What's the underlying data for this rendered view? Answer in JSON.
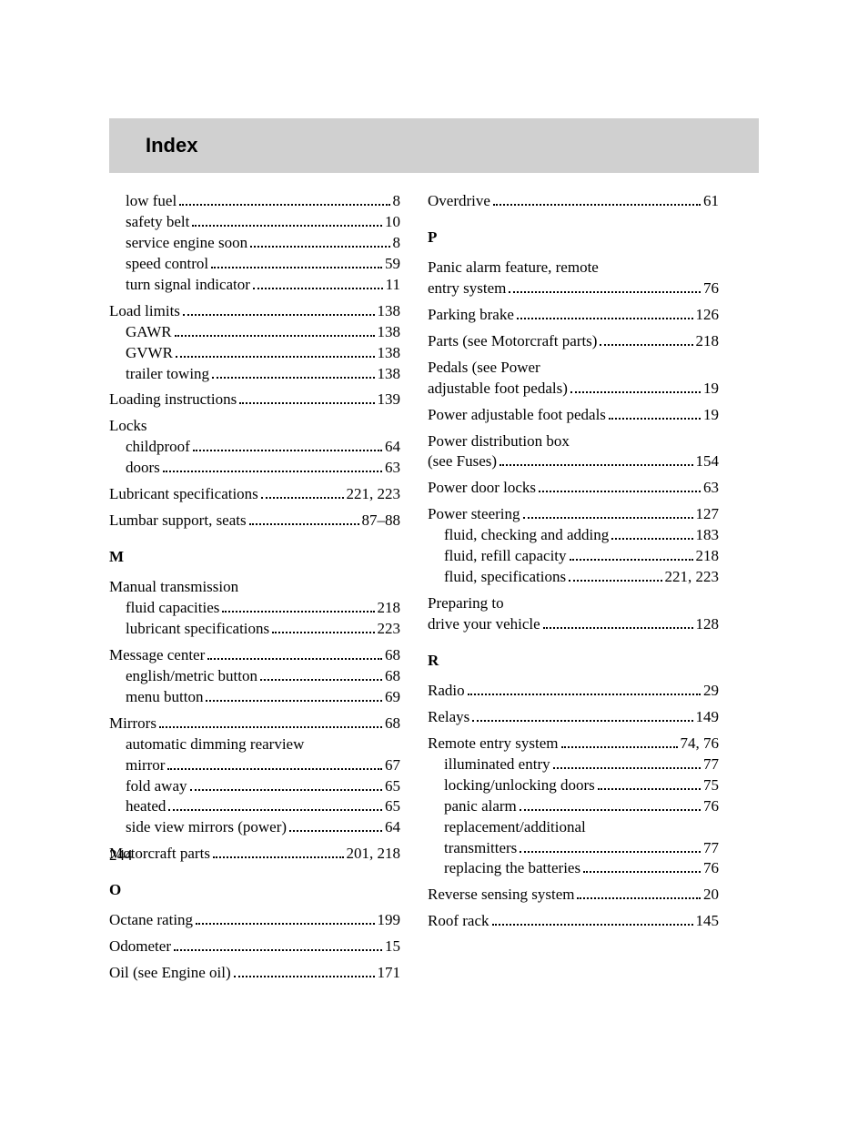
{
  "header": {
    "title": "Index"
  },
  "page_number": "244",
  "left": {
    "continuation": [
      {
        "label": "low fuel",
        "page": "8",
        "indent": 1
      },
      {
        "label": "safety belt",
        "page": "10",
        "indent": 1
      },
      {
        "label": "service engine soon",
        "page": "8",
        "indent": 1
      },
      {
        "label": "speed control",
        "page": "59",
        "indent": 1
      },
      {
        "label": "turn signal indicator",
        "page": "11",
        "indent": 1
      }
    ],
    "load_limits": {
      "label": "Load limits",
      "page": "138"
    },
    "load_limits_sub": [
      {
        "label": "GAWR",
        "page": "138",
        "indent": 1
      },
      {
        "label": "GVWR",
        "page": "138",
        "indent": 1
      },
      {
        "label": "trailer towing",
        "page": "138",
        "indent": 1
      }
    ],
    "loading": {
      "label": "Loading instructions",
      "page": "139"
    },
    "locks_header": "Locks",
    "locks_sub": [
      {
        "label": "childproof",
        "page": "64",
        "indent": 1
      },
      {
        "label": "doors",
        "page": "63",
        "indent": 1
      }
    ],
    "lubricant": {
      "label": "Lubricant specifications",
      "page": "221, 223"
    },
    "lumbar": {
      "label": "Lumbar support, seats",
      "page": "87–88"
    },
    "letter_m": "M",
    "manual_header": "Manual transmission",
    "manual_sub": [
      {
        "label": "fluid capacities",
        "page": "218",
        "indent": 1
      },
      {
        "label": "lubricant specifications",
        "page": "223",
        "indent": 1
      }
    ],
    "message": {
      "label": "Message center",
      "page": "68"
    },
    "message_sub": [
      {
        "label": "english/metric button",
        "page": "68",
        "indent": 1
      },
      {
        "label": "menu button",
        "page": "69",
        "indent": 1
      }
    ],
    "mirrors": {
      "label": "Mirrors",
      "page": "68"
    },
    "mirrors_sub_header": "automatic dimming rearview",
    "mirrors_sub": [
      {
        "label": "mirror",
        "page": "67",
        "indent": 1
      },
      {
        "label": "fold away",
        "page": "65",
        "indent": 1
      },
      {
        "label": "heated",
        "page": "65",
        "indent": 1
      },
      {
        "label": "side view mirrors (power)",
        "page": "64",
        "indent": 1
      }
    ],
    "motorcraft": {
      "label": "Motorcraft parts",
      "page": "201, 218"
    },
    "letter_o": "O",
    "octane": {
      "label": "Octane rating",
      "page": "199"
    },
    "odometer": {
      "label": "Odometer",
      "page": "15"
    },
    "oil": {
      "label": "Oil (see Engine oil)",
      "page": "171"
    }
  },
  "right": {
    "overdrive": {
      "label": "Overdrive",
      "page": "61"
    },
    "letter_p": "P",
    "panic_header": "Panic alarm feature, remote",
    "panic_row": {
      "label": "entry system",
      "page": "76"
    },
    "parking": {
      "label": "Parking brake",
      "page": "126"
    },
    "parts": {
      "label": "Parts (see Motorcraft parts)",
      "page": "218"
    },
    "pedals_header": "Pedals (see Power",
    "pedals_row": {
      "label": "adjustable foot pedals)",
      "page": "19"
    },
    "power_pedals": {
      "label": "Power adjustable foot pedals",
      "page": "19"
    },
    "power_dist_header": "Power distribution box",
    "power_dist_row": {
      "label": "(see Fuses)",
      "page": "154"
    },
    "power_locks": {
      "label": "Power door locks",
      "page": "63"
    },
    "power_steering": {
      "label": "Power steering",
      "page": "127"
    },
    "power_steering_sub": [
      {
        "label": "fluid, checking and adding",
        "page": "183",
        "indent": 1
      },
      {
        "label": "fluid, refill capacity",
        "page": "218",
        "indent": 1
      },
      {
        "label": "fluid, specifications",
        "page": "221, 223",
        "indent": 1
      }
    ],
    "preparing_header": "Preparing to",
    "preparing_row": {
      "label": "drive your vehicle",
      "page": "128"
    },
    "letter_r": "R",
    "radio": {
      "label": "Radio",
      "page": "29"
    },
    "relays": {
      "label": "Relays",
      "page": "149"
    },
    "remote": {
      "label": "Remote entry system",
      "page": "74, 76"
    },
    "remote_sub": [
      {
        "label": "illuminated entry",
        "page": "77",
        "indent": 1
      },
      {
        "label": "locking/unlocking doors",
        "page": "75",
        "indent": 1
      },
      {
        "label": "panic alarm",
        "page": "76",
        "indent": 1
      }
    ],
    "remote_sub_header": "replacement/additional",
    "remote_sub2": [
      {
        "label": "transmitters",
        "page": "77",
        "indent": 1
      },
      {
        "label": "replacing the batteries",
        "page": "76",
        "indent": 1
      }
    ],
    "reverse": {
      "label": "Reverse sensing system",
      "page": "20"
    },
    "roof": {
      "label": "Roof rack",
      "page": "145"
    }
  }
}
